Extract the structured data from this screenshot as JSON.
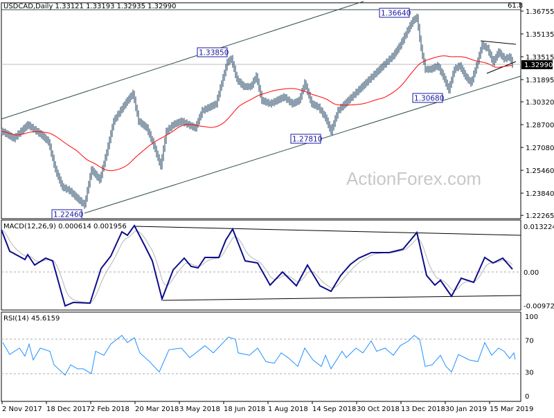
{
  "chart_data": [
    {
      "type": "ohlc",
      "title": "USDCAD,Daily  1.33121 1.33193 1.32935 1.32990",
      "symbol": "USDCAD",
      "timeframe": "Daily",
      "last_ohlc": {
        "open": 1.33121,
        "high": 1.33193,
        "low": 1.32935,
        "close": 1.3299
      },
      "current_price_label": "1.32990",
      "fib_level_label": "61.8",
      "ylim": [
        1.22265,
        1.36755
      ],
      "y_ticks": [
        "1.36755",
        "1.35135",
        "1.33515",
        "1.31895",
        "1.30320",
        "1.28700",
        "1.27080",
        "1.25460",
        "1.23840",
        "1.22265"
      ],
      "y_tick_values": [
        1.36755,
        1.35135,
        1.33515,
        1.31895,
        1.3032,
        1.287,
        1.2708,
        1.2546,
        1.2384,
        1.22265
      ],
      "annotations": [
        {
          "text": "1.22460",
          "price": 1.2246
        },
        {
          "text": "1.33850",
          "price": 1.3385
        },
        {
          "text": "1.27810",
          "price": 1.2781
        },
        {
          "text": "1.36640",
          "price": 1.3664
        },
        {
          "text": "1.30680",
          "price": 1.3068
        }
      ],
      "close_series": {
        "bar": [
          1,
          9,
          19,
          29,
          34,
          39,
          44,
          49,
          54,
          60,
          65,
          71,
          76,
          81,
          86,
          91,
          95,
          99,
          105,
          110,
          115,
          119,
          124,
          130,
          135,
          140,
          145,
          150,
          155,
          159,
          163,
          166,
          170,
          175,
          180,
          184,
          188,
          194,
          199,
          204,
          210,
          215,
          219,
          224,
          229,
          234,
          238,
          243,
          248,
          253,
          258,
          263,
          268,
          273,
          278,
          283,
          288,
          293,
          297,
          300,
          303,
          306,
          310,
          315,
          319,
          323,
          327,
          331,
          335,
          339,
          343,
          347,
          351,
          355,
          359,
          363,
          367,
          369
        ],
        "close": [
          1.2821,
          1.2772,
          1.287,
          1.2797,
          1.2748,
          1.2551,
          1.2428,
          1.2404,
          1.2355,
          1.23,
          1.2551,
          1.2478,
          1.2674,
          1.2895,
          1.2969,
          1.3042,
          1.3091,
          1.2895,
          1.2846,
          1.2723,
          1.2576,
          1.2821,
          1.287,
          1.2895,
          1.287,
          1.2846,
          1.2969,
          1.2993,
          1.3018,
          1.3165,
          1.3312,
          1.3337,
          1.319,
          1.314,
          1.314,
          1.3214,
          1.3042,
          1.3018,
          1.3042,
          1.3067,
          1.3018,
          1.3042,
          1.3165,
          1.3018,
          1.2993,
          1.2919,
          1.2821,
          1.2969,
          1.3018,
          1.3067,
          1.3116,
          1.3165,
          1.3214,
          1.3263,
          1.3312,
          1.3361,
          1.3435,
          1.3533,
          1.3607,
          1.3631,
          1.341,
          1.3263,
          1.3263,
          1.3288,
          1.3214,
          1.3116,
          1.3263,
          1.3288,
          1.3214,
          1.3165,
          1.3288,
          1.3435,
          1.341,
          1.3312,
          1.3386,
          1.3337,
          1.3351,
          1.3299
        ]
      }
    },
    {
      "type": "line",
      "title": "MACD(12,26,9) 0.000614 0.001956",
      "ylim": [
        -0.009721,
        0.013224
      ],
      "y_ticks": [
        "0.013224",
        "0.00",
        "-0.009721"
      ],
      "y_tick_values": [
        0.013224,
        0,
        -0.009721
      ],
      "macd": {
        "bar": [
          0,
          6,
          17,
          19,
          24,
          32,
          37,
          46,
          52,
          64,
          72,
          79,
          87,
          91,
          96,
          104,
          109,
          116,
          124,
          132,
          137,
          142,
          147,
          157,
          162,
          167,
          176,
          185,
          194,
          203,
          213,
          221,
          230,
          238,
          245,
          252,
          258,
          267,
          280,
          290,
          300,
          307,
          313,
          317,
          325,
          332,
          341,
          349,
          355,
          362,
          369
        ],
        "value": [
          0.0122,
          0.006,
          0.0036,
          0.005,
          0.002,
          0.004,
          0.0032,
          -0.0098,
          -0.0088,
          -0.009,
          0.001,
          0.0046,
          0.0116,
          0.0106,
          0.0134,
          0.0072,
          0.0032,
          -0.0078,
          0.0006,
          0.004,
          0.0016,
          0.0012,
          0.0042,
          0.0042,
          0.0092,
          0.0124,
          0.0032,
          0.0026,
          -0.0038,
          0,
          -0.004,
          0.002,
          -0.004,
          -0.0056,
          -0.001,
          0.0022,
          0.004,
          0.0056,
          0.0056,
          0.0066,
          0.0114,
          -0.001,
          -0.0038,
          -0.0024,
          -0.007,
          -0.0018,
          -0.003,
          0.0042,
          0.0026,
          0.004,
          0.0008
        ]
      }
    },
    {
      "type": "line",
      "title": "RSI(14) 45.6159",
      "ylim": [
        0,
        100
      ],
      "y_ticks": [
        "100",
        "70",
        "30",
        "0"
      ],
      "y_tick_values": [
        100,
        70,
        30,
        0
      ],
      "rsi": {
        "bar": [
          1,
          6,
          13,
          17,
          20,
          23,
          28,
          35,
          38,
          46,
          50,
          55,
          59,
          65,
          68,
          74,
          79,
          87,
          91,
          96,
          100,
          107,
          114,
          121,
          130,
          136,
          147,
          153,
          164,
          169,
          171,
          179,
          185,
          191,
          197,
          202,
          207,
          214,
          219,
          225,
          231,
          234,
          238,
          246,
          249,
          256,
          261,
          267,
          271,
          277,
          283,
          288,
          294,
          298,
          302,
          306,
          311,
          317,
          321,
          325,
          330,
          338,
          344,
          349,
          354,
          359,
          363,
          367,
          370,
          371
        ],
        "value": [
          67,
          52,
          60,
          50,
          65,
          45,
          60,
          56,
          39,
          26,
          39,
          34,
          34,
          28,
          56,
          51,
          65,
          76,
          67,
          73,
          54,
          43,
          30,
          58,
          60,
          48,
          63,
          54,
          74,
          71,
          54,
          51,
          60,
          43,
          41,
          54,
          48,
          37,
          60,
          45,
          37,
          51,
          34,
          56,
          48,
          60,
          54,
          69,
          56,
          60,
          51,
          63,
          69,
          76,
          71,
          37,
          39,
          51,
          37,
          30,
          52,
          45,
          43,
          67,
          51,
          60,
          56,
          47,
          54,
          45.6
        ]
      }
    }
  ],
  "x_axis": {
    "tick_labels": [
      "2 Nov 2017",
      "18 Dec 2017",
      "2 Feb 2018",
      "20 Mar 2018",
      "3 May 2018",
      "18 Jun 2018",
      "1 Aug 2018",
      "14 Sep 2018",
      "30 Oct 2018",
      "13 Dec 2018",
      "30 Jan 2019",
      "15 Mar 2019"
    ]
  },
  "watermark": "ActionForex.com",
  "colors": {
    "bars": "#1b3f5c",
    "moving_average": "#ff0000",
    "macd": "#0b0b8a",
    "signal": "#b4b4b4",
    "rsi": "#1e90ff",
    "annotation": "#1a1aa0"
  }
}
